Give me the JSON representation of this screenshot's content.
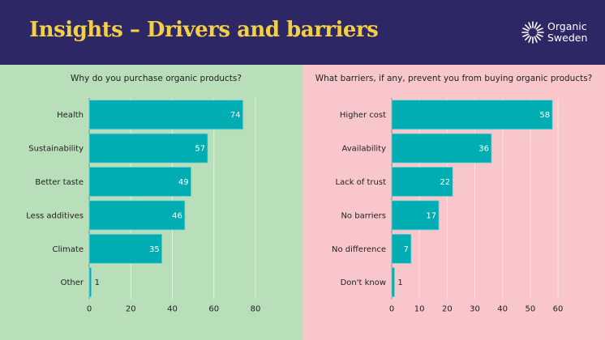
{
  "header": {
    "title": "Insights – Drivers and barriers",
    "logo": {
      "line1": "Organic",
      "line2": "Sweden",
      "icon": "sun-rays-icon"
    }
  },
  "colors": {
    "header_bg": "#2e2766",
    "title": "#f2cf45",
    "left_panel_bg": "#b8dfb9",
    "right_panel_bg": "#f9c7cb",
    "bar": "#00adb2",
    "bar_edge": "#6fd3d5"
  },
  "chart_data": [
    {
      "type": "bar",
      "orientation": "horizontal",
      "title": "Why do you purchase organic products?",
      "categories": [
        "Health",
        "Sustainability",
        "Better taste",
        "Less additives",
        "Climate",
        "Other"
      ],
      "values": [
        74,
        57,
        49,
        46,
        35,
        1
      ],
      "xlim": [
        0,
        80
      ],
      "xticks": [
        0,
        20,
        40,
        60,
        80
      ],
      "grid": true,
      "legend": "none"
    },
    {
      "type": "bar",
      "orientation": "horizontal",
      "title": "What barriers, if any, prevent you from buying organic products?",
      "categories": [
        "Higher cost",
        "Availability",
        "Lack of trust",
        "No barriers",
        "No difference",
        "Don't know"
      ],
      "values": [
        58,
        36,
        22,
        17,
        7,
        1
      ],
      "xlim": [
        0,
        60
      ],
      "xticks": [
        0,
        10,
        20,
        30,
        40,
        50,
        60
      ],
      "grid": true,
      "legend": "none"
    }
  ]
}
